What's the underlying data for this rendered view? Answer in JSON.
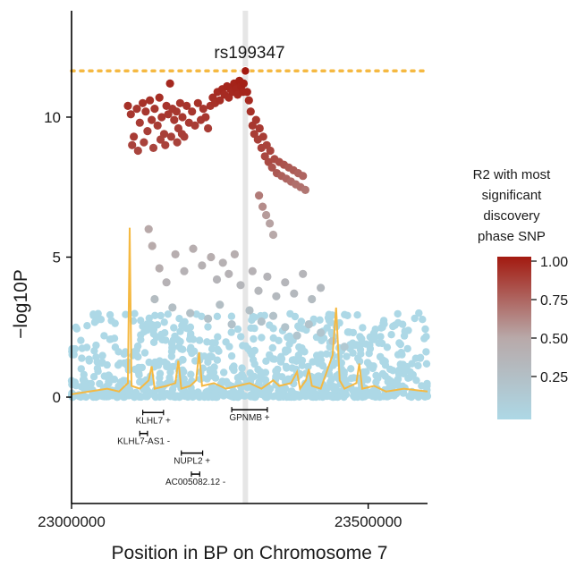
{
  "chart_data": {
    "type": "scatter",
    "title": "",
    "xlabel": "Position in BP on Chromosome 7",
    "ylabel": "−log10P",
    "xlim": [
      23000000,
      23600000
    ],
    "ylim": [
      -3.8,
      13.8
    ],
    "x_ticks": [
      23000000,
      23500000
    ],
    "x_tick_labels": [
      "23000000",
      "23500000"
    ],
    "y_ticks": [
      0,
      5,
      10
    ],
    "y_tick_labels": [
      "0",
      "5",
      "10"
    ],
    "significance_threshold": 11.65,
    "threshold_color": "#f5b942",
    "lead_snp": {
      "label": "rs199347",
      "x": 23293000,
      "y": 11.65
    },
    "highlight_x": 23293000,
    "legend": {
      "title_lines": [
        "R2 with most",
        "significant",
        "discovery",
        "phase SNP"
      ],
      "ticks": [
        1.0,
        0.75,
        0.5,
        0.25
      ],
      "tick_labels": [
        "1.00",
        "0.75",
        "0.50",
        "0.25"
      ],
      "color_low": "#add8e6",
      "color_high": "#a31a10",
      "range": [
        0,
        1
      ]
    },
    "colors": {
      "point_low": "#add8e6",
      "point_mid": "#b8a9a9",
      "point_high": "#a31a10",
      "trace": "#f5b942"
    },
    "series": [
      {
        "kind": "snps",
        "points": [
          [
            23095000,
            10.4,
            0.92
          ],
          [
            23100000,
            10.1,
            0.9
          ],
          [
            23105000,
            9.3,
            0.88
          ],
          [
            23110000,
            10.3,
            0.9
          ],
          [
            23115000,
            9.8,
            0.88
          ],
          [
            23120000,
            10.5,
            0.92
          ],
          [
            23125000,
            10.2,
            0.9
          ],
          [
            23128000,
            9.5,
            0.87
          ],
          [
            23132000,
            10.6,
            0.92
          ],
          [
            23135000,
            9.9,
            0.89
          ],
          [
            23140000,
            10.3,
            0.9
          ],
          [
            23145000,
            9.7,
            0.88
          ],
          [
            23148000,
            10.7,
            0.93
          ],
          [
            23152000,
            10.0,
            0.9
          ],
          [
            23156000,
            9.4,
            0.87
          ],
          [
            23160000,
            10.4,
            0.91
          ],
          [
            23163000,
            10.1,
            0.9
          ],
          [
            23166000,
            11.2,
            0.95
          ],
          [
            23170000,
            10.3,
            0.9
          ],
          [
            23173000,
            9.9,
            0.89
          ],
          [
            23177000,
            10.2,
            0.9
          ],
          [
            23180000,
            9.6,
            0.88
          ],
          [
            23183000,
            10.5,
            0.91
          ],
          [
            23187000,
            10.0,
            0.9
          ],
          [
            23190000,
            9.3,
            0.87
          ],
          [
            23194000,
            10.4,
            0.91
          ],
          [
            23198000,
            9.8,
            0.89
          ],
          [
            23102000,
            9.0,
            0.86
          ],
          [
            23112000,
            8.8,
            0.85
          ],
          [
            23122000,
            9.1,
            0.86
          ],
          [
            23138000,
            8.9,
            0.85
          ],
          [
            23150000,
            9.2,
            0.86
          ],
          [
            23158000,
            9.0,
            0.86
          ],
          [
            23168000,
            9.3,
            0.87
          ],
          [
            23178000,
            9.1,
            0.86
          ],
          [
            23186000,
            9.4,
            0.87
          ],
          [
            23203000,
            10.2,
            0.9
          ],
          [
            23208000,
            9.7,
            0.88
          ],
          [
            23213000,
            10.5,
            0.92
          ],
          [
            23218000,
            9.9,
            0.89
          ],
          [
            23222000,
            10.3,
            0.9
          ],
          [
            23226000,
            10.0,
            0.9
          ],
          [
            23230000,
            9.6,
            0.88
          ],
          [
            23234000,
            10.4,
            0.91
          ],
          [
            23238000,
            10.7,
            0.93
          ],
          [
            23242000,
            10.5,
            0.92
          ],
          [
            23246000,
            10.9,
            0.94
          ],
          [
            23250000,
            10.6,
            0.93
          ],
          [
            23254000,
            11.0,
            0.95
          ],
          [
            23258000,
            10.8,
            0.94
          ],
          [
            23262000,
            11.1,
            0.96
          ],
          [
            23265000,
            10.7,
            0.94
          ],
          [
            23268000,
            11.0,
            0.96
          ],
          [
            23271000,
            10.9,
            0.95
          ],
          [
            23274000,
            11.2,
            0.97
          ],
          [
            23277000,
            11.0,
            0.96
          ],
          [
            23280000,
            10.8,
            0.95
          ],
          [
            23283000,
            11.3,
            0.98
          ],
          [
            23286000,
            11.1,
            0.97
          ],
          [
            23289000,
            10.9,
            0.96
          ],
          [
            23290000,
            11.2,
            0.98
          ],
          [
            23296000,
            10.9,
            0.96
          ],
          [
            23299000,
            10.6,
            0.94
          ],
          [
            23302000,
            10.2,
            0.92
          ],
          [
            23305000,
            9.7,
            0.9
          ],
          [
            23308000,
            9.4,
            0.88
          ],
          [
            23311000,
            9.9,
            0.9
          ],
          [
            23314000,
            9.2,
            0.87
          ],
          [
            23317000,
            9.6,
            0.89
          ],
          [
            23320000,
            8.9,
            0.86
          ],
          [
            23323000,
            9.3,
            0.88
          ],
          [
            23326000,
            8.6,
            0.84
          ],
          [
            23329000,
            9.0,
            0.86
          ],
          [
            23332000,
            8.4,
            0.83
          ],
          [
            23335000,
            8.8,
            0.85
          ],
          [
            23338000,
            8.2,
            0.8
          ],
          [
            23342000,
            8.5,
            0.83
          ],
          [
            23346000,
            8.0,
            0.78
          ],
          [
            23350000,
            8.4,
            0.82
          ],
          [
            23354000,
            7.9,
            0.76
          ],
          [
            23358000,
            8.3,
            0.8
          ],
          [
            23362000,
            7.8,
            0.74
          ],
          [
            23366000,
            8.2,
            0.78
          ],
          [
            23370000,
            7.7,
            0.72
          ],
          [
            23374000,
            8.1,
            0.77
          ],
          [
            23378000,
            7.6,
            0.7
          ],
          [
            23382000,
            8.0,
            0.75
          ],
          [
            23386000,
            7.5,
            0.7
          ],
          [
            23390000,
            7.9,
            0.74
          ],
          [
            23394000,
            7.4,
            0.68
          ],
          [
            23316000,
            7.2,
            0.66
          ],
          [
            23322000,
            6.8,
            0.6
          ],
          [
            23328000,
            6.5,
            0.55
          ],
          [
            23334000,
            6.2,
            0.52
          ],
          [
            23340000,
            5.8,
            0.5
          ],
          [
            23130000,
            6.0,
            0.5
          ],
          [
            23136000,
            5.4,
            0.48
          ],
          [
            23148000,
            4.6,
            0.45
          ],
          [
            23160000,
            4.1,
            0.4
          ],
          [
            23175000,
            5.1,
            0.45
          ],
          [
            23190000,
            4.5,
            0.4
          ],
          [
            23205000,
            5.3,
            0.45
          ],
          [
            23220000,
            4.7,
            0.42
          ],
          [
            23235000,
            5.0,
            0.45
          ],
          [
            23245000,
            4.2,
            0.38
          ],
          [
            23255000,
            4.8,
            0.42
          ],
          [
            23265000,
            4.4,
            0.4
          ],
          [
            23275000,
            5.1,
            0.45
          ],
          [
            23285000,
            4.0,
            0.36
          ],
          [
            23305000,
            4.5,
            0.4
          ],
          [
            23315000,
            3.8,
            0.35
          ],
          [
            23330000,
            4.3,
            0.38
          ],
          [
            23345000,
            3.6,
            0.33
          ],
          [
            23360000,
            4.1,
            0.36
          ],
          [
            23375000,
            3.7,
            0.34
          ],
          [
            23390000,
            4.4,
            0.37
          ],
          [
            23405000,
            3.5,
            0.3
          ],
          [
            23420000,
            3.9,
            0.33
          ],
          [
            23140000,
            3.5,
            0.3
          ],
          [
            23170000,
            3.2,
            0.28
          ],
          [
            23200000,
            3.0,
            0.26
          ],
          [
            23230000,
            2.8,
            0.25
          ],
          [
            23250000,
            3.3,
            0.28
          ],
          [
            23270000,
            2.6,
            0.24
          ],
          [
            23300000,
            3.1,
            0.27
          ],
          [
            23320000,
            2.7,
            0.24
          ],
          [
            23340000,
            2.9,
            0.25
          ],
          [
            23360000,
            2.5,
            0.22
          ],
          [
            23380000,
            2.2,
            0.2
          ],
          [
            23400000,
            2.6,
            0.22
          ],
          [
            23420000,
            2.3,
            0.2
          ],
          [
            23440000,
            2.0,
            0.18
          ],
          [
            23460000,
            1.8,
            0.16
          ]
        ]
      }
    ],
    "trace_points": [
      [
        23000000,
        0.1
      ],
      [
        23030000,
        0.2
      ],
      [
        23060000,
        0.3
      ],
      [
        23080000,
        0.2
      ],
      [
        23095000,
        0.5
      ],
      [
        23098000,
        6.05
      ],
      [
        23101000,
        0.4
      ],
      [
        23115000,
        0.3
      ],
      [
        23130000,
        0.6
      ],
      [
        23135000,
        1.1
      ],
      [
        23140000,
        0.3
      ],
      [
        23160000,
        0.4
      ],
      [
        23175000,
        0.5
      ],
      [
        23180000,
        1.3
      ],
      [
        23185000,
        0.3
      ],
      [
        23200000,
        0.4
      ],
      [
        23210000,
        0.6
      ],
      [
        23215000,
        1.6
      ],
      [
        23220000,
        0.4
      ],
      [
        23240000,
        0.5
      ],
      [
        23260000,
        0.3
      ],
      [
        23280000,
        0.4
      ],
      [
        23300000,
        0.5
      ],
      [
        23320000,
        0.3
      ],
      [
        23340000,
        0.6
      ],
      [
        23350000,
        0.4
      ],
      [
        23370000,
        0.5
      ],
      [
        23380000,
        0.9
      ],
      [
        23385000,
        0.3
      ],
      [
        23395000,
        0.6
      ],
      [
        23400000,
        1.0
      ],
      [
        23405000,
        0.4
      ],
      [
        23420000,
        0.3
      ],
      [
        23440000,
        1.5
      ],
      [
        23446000,
        3.2
      ],
      [
        23452000,
        0.6
      ],
      [
        23460000,
        0.3
      ],
      [
        23480000,
        0.5
      ],
      [
        23485000,
        1.2
      ],
      [
        23490000,
        0.3
      ],
      [
        23510000,
        0.4
      ],
      [
        23530000,
        0.2
      ],
      [
        23560000,
        0.3
      ],
      [
        23600000,
        0.2
      ]
    ],
    "genes": [
      {
        "label": "KLHL7 +",
        "start": 23120000,
        "end": 23155000,
        "y": -0.55
      },
      {
        "label": "GPNMB +",
        "start": 23270000,
        "end": 23330000,
        "y": -0.45
      },
      {
        "label": "KLHL7-AS1 -",
        "start": 23115000,
        "end": 23128000,
        "y": -1.3
      },
      {
        "label": "NUPL2 +",
        "start": 23185000,
        "end": 23221000,
        "y": -2.0
      },
      {
        "label": "AC005082.12 -",
        "start": 23202000,
        "end": 23216000,
        "y": -2.75
      }
    ]
  }
}
